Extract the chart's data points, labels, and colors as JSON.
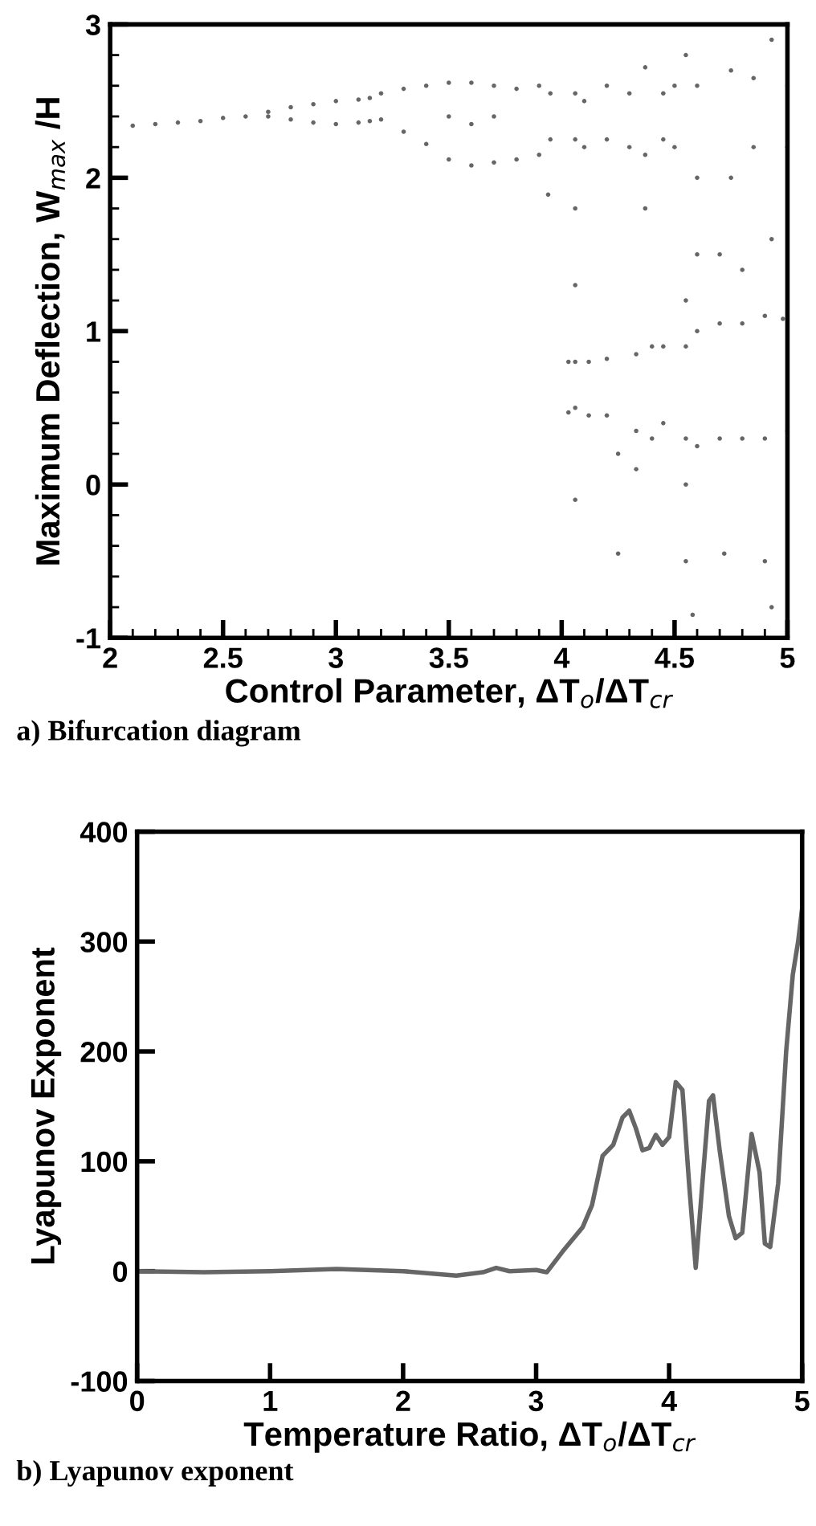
{
  "chart_data": [
    {
      "type": "scatter",
      "xlabel": "Control Parameter, ΔT$_{o}$/ΔT$_{cr}$",
      "ylabel": "Maximum Deflection, W$_{max}$ /H",
      "annotations": [
        "a) Bifurcation diagram"
      ],
      "xlim": [
        2,
        5
      ],
      "ylim": [
        -1,
        3
      ],
      "xticks": [
        2,
        2.5,
        3,
        3.5,
        4,
        4.5,
        5
      ],
      "yticks": [
        -1,
        0,
        1,
        2,
        3
      ],
      "grid": false,
      "legend": false,
      "marker": "circle",
      "series": [
        {
          "color": "#666666",
          "x": [
            2.0,
            2.1,
            2.2,
            2.3,
            2.4,
            2.5,
            2.6,
            2.7,
            2.8,
            2.9,
            3.0,
            3.1,
            3.15,
            2.7,
            2.8,
            2.9,
            3.0,
            3.1,
            3.15,
            3.2,
            3.2,
            3.3,
            3.3,
            3.4,
            3.4,
            3.5,
            3.5,
            3.5,
            3.6,
            3.6,
            3.6,
            3.7,
            3.7,
            3.7,
            3.8,
            3.8,
            3.9,
            3.9,
            3.95,
            3.95,
            3.94,
            4.06,
            4.06,
            4.1,
            4.1,
            4.06,
            4.06,
            4.06,
            4.06,
            4.03,
            4.03,
            4.12,
            4.12,
            4.06,
            4.2,
            4.2,
            4.2,
            4.2,
            4.25,
            4.25,
            4.3,
            4.3,
            4.37,
            4.37,
            4.45,
            4.45,
            4.37,
            4.33,
            4.33,
            4.4,
            4.4,
            4.45,
            4.45,
            4.33,
            4.5,
            4.5,
            4.55,
            4.55,
            4.55,
            4.58,
            4.55,
            4.55,
            4.55,
            4.6,
            4.6,
            4.7,
            4.7,
            4.8,
            4.8,
            4.9,
            4.9,
            5.0,
            4.98,
            4.75,
            4.75,
            4.85,
            4.85,
            4.93,
            4.93,
            5.0,
            5.0,
            4.7,
            4.72,
            4.9,
            4.93,
            4.8,
            4.6,
            4.6,
            4.6
          ],
          "values": [
            2.33,
            2.34,
            2.35,
            2.36,
            2.37,
            2.39,
            2.4,
            2.43,
            2.46,
            2.48,
            2.5,
            2.51,
            2.52,
            2.4,
            2.38,
            2.36,
            2.35,
            2.36,
            2.37,
            2.38,
            2.55,
            2.3,
            2.58,
            2.22,
            2.6,
            2.12,
            2.62,
            2.4,
            2.08,
            2.62,
            2.35,
            2.1,
            2.6,
            2.4,
            2.12,
            2.58,
            2.15,
            2.6,
            2.25,
            2.55,
            1.89,
            2.25,
            2.55,
            2.2,
            2.5,
            1.8,
            1.3,
            0.8,
            0.5,
            0.8,
            0.47,
            0.8,
            0.45,
            -0.1,
            0.82,
            0.45,
            2.25,
            2.6,
            -0.45,
            0.2,
            2.2,
            2.55,
            2.15,
            2.72,
            2.25,
            2.55,
            1.8,
            0.85,
            0.35,
            0.9,
            0.3,
            0.9,
            0.4,
            0.1,
            2.2,
            2.6,
            2.8,
            1.2,
            -0.5,
            -0.85,
            0.0,
            0.3,
            0.9,
            0.25,
            1.0,
            0.3,
            1.05,
            0.3,
            1.05,
            0.3,
            1.1,
            0.35,
            1.08,
            2.0,
            2.7,
            2.2,
            2.65,
            2.9,
            1.6,
            2.6,
            2.2,
            1.5,
            -0.45,
            -0.5,
            -0.8,
            1.4,
            2.6,
            2.0,
            1.5
          ]
        }
      ]
    },
    {
      "type": "line",
      "xlabel": "Temperature Ratio, ΔT$_{o}$/ΔT$_{cr}$",
      "ylabel": "Lyapunov Exponent",
      "annotations": [
        "b) Lyapunov exponent"
      ],
      "xlim": [
        0,
        5
      ],
      "ylim": [
        -100,
        400
      ],
      "xticks": [
        0,
        1,
        2,
        3,
        4,
        5
      ],
      "yticks": [
        -100,
        0,
        100,
        200,
        300,
        400
      ],
      "grid": false,
      "legend": false,
      "marker": "none",
      "line_style": "solid",
      "series": [
        {
          "color": "#666666",
          "x": [
            0,
            0.5,
            1,
            1.5,
            2,
            2.4,
            2.6,
            2.7,
            2.8,
            3.0,
            3.08,
            3.2,
            3.35,
            3.42,
            3.5,
            3.58,
            3.65,
            3.7,
            3.75,
            3.8,
            3.85,
            3.9,
            3.95,
            4.0,
            4.05,
            4.1,
            4.15,
            4.2,
            4.25,
            4.3,
            4.33,
            4.38,
            4.45,
            4.5,
            4.55,
            4.62,
            4.68,
            4.72,
            4.76,
            4.82,
            4.88,
            4.93,
            4.97,
            5.0
          ],
          "values": [
            0,
            -1,
            0,
            2,
            0,
            -4,
            -1,
            3,
            0,
            1,
            -1,
            18,
            40,
            60,
            105,
            115,
            140,
            146,
            130,
            110,
            112,
            124,
            115,
            122,
            172,
            165,
            80,
            3,
            80,
            155,
            160,
            110,
            50,
            30,
            35,
            125,
            90,
            25,
            22,
            80,
            200,
            270,
            300,
            330
          ]
        }
      ]
    }
  ]
}
